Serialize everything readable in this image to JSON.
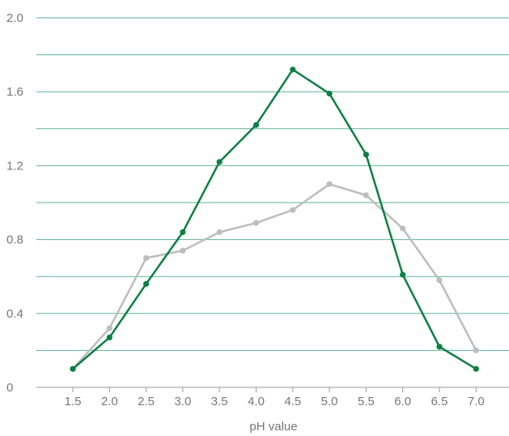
{
  "chart_data": {
    "type": "line",
    "title": "",
    "xlabel": "pH value",
    "ylabel": "",
    "x": [
      1.5,
      2.0,
      2.5,
      3.0,
      3.5,
      4.0,
      4.5,
      5.0,
      5.5,
      6.0,
      6.5,
      7.0
    ],
    "x_tick_labels": [
      "1.5",
      "2.0",
      "2.5",
      "3.0",
      "3.5",
      "4.0",
      "4.5",
      "5.0",
      "5.5",
      "6.0",
      "6.5",
      "7.0"
    ],
    "ylim": [
      0,
      2.0
    ],
    "y_ticks": [
      0,
      0.4,
      0.8,
      1.2,
      1.6,
      2.0
    ],
    "y_tick_labels": [
      "0",
      "0.4",
      "0.8",
      "1.2",
      "1.6",
      "2.0"
    ],
    "gridlines_y": [
      0.2,
      0.4,
      0.6,
      0.8,
      1.0,
      1.2,
      1.4,
      1.6,
      1.8,
      2.0
    ],
    "grid": true,
    "series": [
      {
        "color": "#0a8043",
        "values": [
          0.1,
          0.27,
          0.56,
          0.84,
          1.22,
          1.42,
          1.72,
          1.59,
          1.26,
          0.61,
          0.22,
          0.1
        ]
      },
      {
        "color": "#bdbdbd",
        "values": [
          0.1,
          0.32,
          0.7,
          0.74,
          0.84,
          0.89,
          0.96,
          1.1,
          1.04,
          0.86,
          0.58,
          0.2
        ]
      }
    ],
    "colors": {
      "grid": "#5fb396",
      "axis": "#999999"
    }
  }
}
